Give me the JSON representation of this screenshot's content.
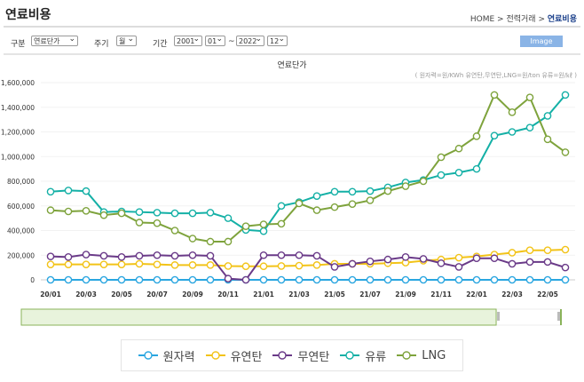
{
  "header": {
    "title": "연료비용",
    "breadcrumb": [
      "HOME",
      "전력거래",
      "연료비용"
    ],
    "sep": ">"
  },
  "filters": {
    "category_label": "구분",
    "category_value": "연료단가",
    "period_label": "주기",
    "period_value": "월",
    "range_label": "기간",
    "start_year": "2001",
    "start_month": "01",
    "tilde": "~",
    "end_year": "2022",
    "end_month": "12",
    "image_button": "Image"
  },
  "chart_data": {
    "type": "line",
    "title": "연료단가",
    "unit_note": "( 원자력=원/KWh 유연탄,무연탄,LNG=원/ton 유류=원/㎘ )",
    "ylim": [
      0,
      1600000
    ],
    "yticks": [
      "0",
      "200,000",
      "400,000",
      "600,000",
      "800,000",
      "1,000,000",
      "1,200,000",
      "1,400,000",
      "1,600,000"
    ],
    "x": [
      "20/01",
      "20/02",
      "20/03",
      "20/04",
      "20/05",
      "20/06",
      "20/07",
      "20/08",
      "20/09",
      "20/10",
      "20/11",
      "20/12",
      "21/01",
      "21/02",
      "21/03",
      "21/04",
      "21/05",
      "21/06",
      "21/07",
      "21/08",
      "21/09",
      "21/10",
      "21/11",
      "21/12",
      "22/01",
      "22/02",
      "22/03",
      "22/04",
      "22/05",
      "22/06"
    ],
    "xtick_labels": [
      "20/01",
      "20/03",
      "20/05",
      "20/07",
      "20/09",
      "20/11",
      "21/01",
      "21/03",
      "21/05",
      "21/07",
      "21/09",
      "21/11",
      "22/01",
      "22/03",
      "22/05"
    ],
    "grid": true,
    "legend_position": "bottom",
    "series": [
      {
        "name": "원자력",
        "color": "#2aa6e0",
        "values": [
          5,
          5,
          5,
          5,
          5,
          5,
          5,
          5,
          5,
          5,
          5,
          5,
          5,
          5,
          5,
          5,
          5,
          5,
          5,
          5,
          5,
          5,
          5,
          5,
          5,
          5,
          5,
          5,
          5,
          5
        ]
      },
      {
        "name": "유연탄",
        "color": "#f2c318",
        "values": [
          125000,
          125000,
          125000,
          125000,
          125000,
          130000,
          125000,
          120000,
          120000,
          120000,
          112000,
          110000,
          110000,
          112000,
          115000,
          120000,
          130000,
          130000,
          130000,
          135000,
          140000,
          155000,
          165000,
          180000,
          190000,
          205000,
          220000,
          240000,
          240000,
          245000
        ]
      },
      {
        "name": "무연탄",
        "color": "#6a3a88",
        "values": [
          190000,
          185000,
          205000,
          195000,
          185000,
          195000,
          200000,
          195000,
          200000,
          195000,
          10000,
          0,
          200000,
          200000,
          200000,
          195000,
          105000,
          130000,
          150000,
          165000,
          185000,
          170000,
          135000,
          105000,
          175000,
          175000,
          130000,
          145000,
          145000,
          100000
        ]
      },
      {
        "name": "유류",
        "color": "#14b0a6",
        "values": [
          715000,
          725000,
          720000,
          550000,
          555000,
          550000,
          545000,
          540000,
          540000,
          545000,
          500000,
          405000,
          395000,
          600000,
          630000,
          680000,
          715000,
          715000,
          720000,
          750000,
          790000,
          810000,
          850000,
          870000,
          900000,
          1170000,
          1200000,
          1235000,
          1330000,
          1500000
        ]
      },
      {
        "name": "LNG",
        "color": "#7ea33c",
        "values": [
          565000,
          555000,
          560000,
          525000,
          540000,
          465000,
          460000,
          400000,
          335000,
          310000,
          310000,
          435000,
          450000,
          455000,
          620000,
          565000,
          590000,
          615000,
          645000,
          720000,
          760000,
          800000,
          995000,
          1065000,
          1165000,
          1500000,
          1360000,
          1480000,
          1140000,
          1035000
        ]
      }
    ],
    "navigator_selection": [
      0,
      0.88
    ]
  }
}
